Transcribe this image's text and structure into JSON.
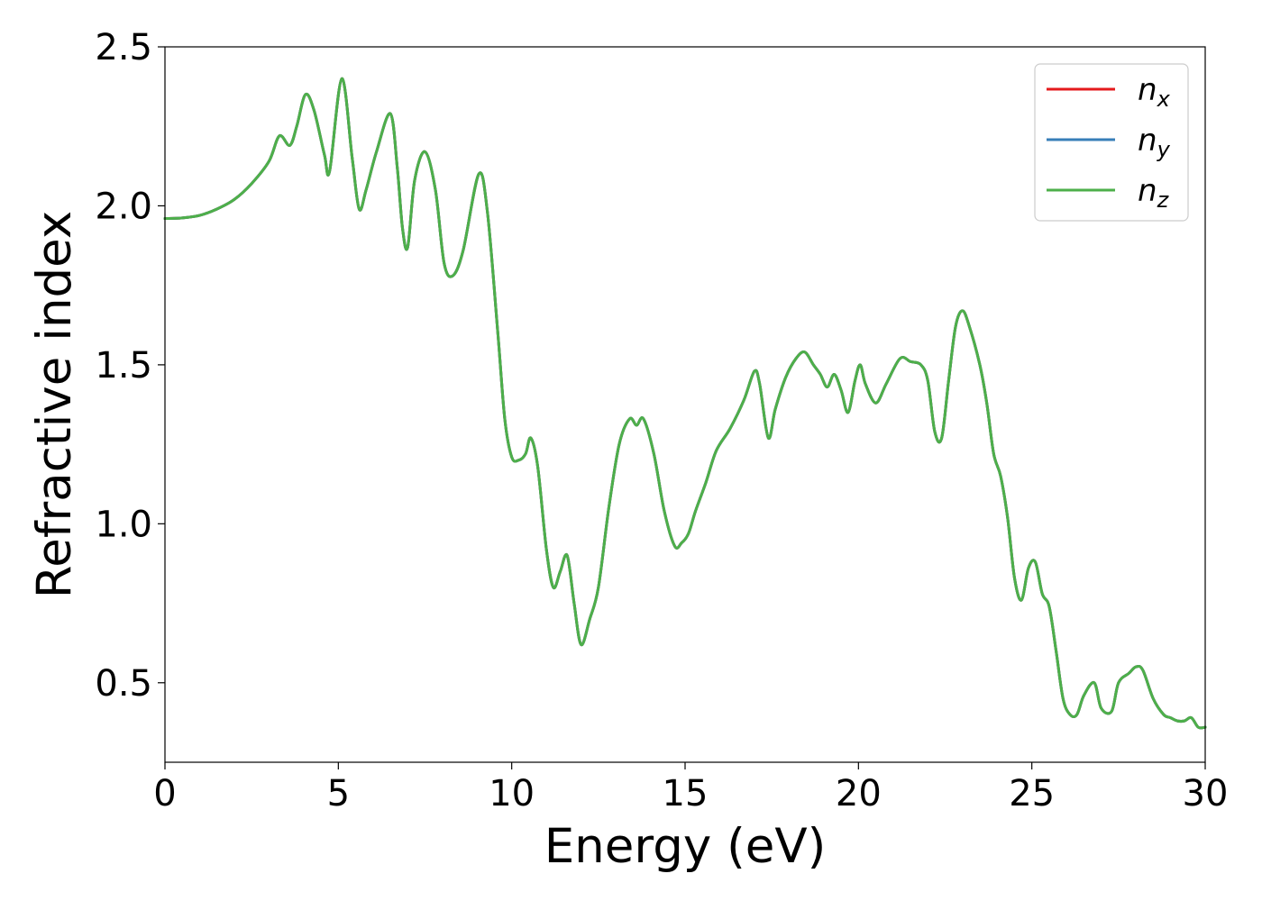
{
  "chart_data": {
    "type": "line",
    "title": "",
    "xlabel": "Energy (eV)",
    "ylabel": "Refractive index",
    "xlim": [
      0,
      30
    ],
    "ylim": [
      0.25,
      2.5
    ],
    "xticks": [
      0,
      5,
      10,
      15,
      20,
      25,
      30
    ],
    "xtick_labels": [
      "0",
      "5",
      "10",
      "15",
      "20",
      "25",
      "30"
    ],
    "yticks": [
      0.5,
      1.0,
      1.5,
      2.0,
      2.5
    ],
    "ytick_labels": [
      "0.5",
      "1.0",
      "1.5",
      "2.0",
      "2.5"
    ],
    "grid": false,
    "legend_position": "top-right",
    "legend": [
      {
        "base": "n",
        "sub": "x",
        "color": "#e41a1c"
      },
      {
        "base": "n",
        "sub": "y",
        "color": "#377eb8"
      },
      {
        "base": "n",
        "sub": "z",
        "color": "#4daf4a"
      }
    ],
    "x": [
      0,
      0.5,
      1,
      1.5,
      2,
      2.5,
      3,
      3.3,
      3.6,
      3.8,
      4.05,
      4.3,
      4.6,
      4.75,
      5.1,
      5.4,
      5.6,
      5.8,
      6.1,
      6.5,
      6.7,
      6.85,
      7,
      7.2,
      7.5,
      7.8,
      8.05,
      8.3,
      8.6,
      9.05,
      9.3,
      9.6,
      9.8,
      10,
      10.2,
      10.4,
      10.55,
      10.75,
      11,
      11.2,
      11.4,
      11.6,
      11.8,
      12,
      12.25,
      12.5,
      12.8,
      13.1,
      13.4,
      13.6,
      13.8,
      14.1,
      14.4,
      14.7,
      14.9,
      15.1,
      15.3,
      15.6,
      15.9,
      16.3,
      16.7,
      17,
      17.15,
      17.4,
      17.6,
      17.9,
      18.2,
      18.45,
      18.7,
      18.9,
      19.1,
      19.3,
      19.5,
      19.7,
      19.9,
      20.05,
      20.2,
      20.5,
      20.8,
      21.2,
      21.5,
      21.8,
      22,
      22.2,
      22.4,
      22.6,
      22.8,
      23,
      23.2,
      23.5,
      23.7,
      23.9,
      24.1,
      24.3,
      24.5,
      24.7,
      24.9,
      25.1,
      25.3,
      25.5,
      25.7,
      25.9,
      26.1,
      26.3,
      26.5,
      26.8,
      27,
      27.3,
      27.5,
      27.8,
      28,
      28.2,
      28.5,
      28.8,
      29,
      29.2,
      29.4,
      29.6,
      29.8,
      30
    ],
    "series": [
      {
        "name": "n_x",
        "color": "#e41a1c",
        "values": [
          1.96,
          1.962,
          1.97,
          1.99,
          2.02,
          2.07,
          2.14,
          2.22,
          2.19,
          2.25,
          2.35,
          2.3,
          2.16,
          2.11,
          2.4,
          2.15,
          1.99,
          2.05,
          2.17,
          2.29,
          2.12,
          1.93,
          1.87,
          2.08,
          2.17,
          2.05,
          1.82,
          1.78,
          1.86,
          2.1,
          1.98,
          1.6,
          1.33,
          1.21,
          1.2,
          1.22,
          1.27,
          1.18,
          0.92,
          0.8,
          0.85,
          0.9,
          0.75,
          0.62,
          0.7,
          0.8,
          1.05,
          1.25,
          1.33,
          1.31,
          1.33,
          1.22,
          1.04,
          0.93,
          0.94,
          0.97,
          1.04,
          1.13,
          1.23,
          1.3,
          1.39,
          1.48,
          1.44,
          1.27,
          1.36,
          1.46,
          1.52,
          1.54,
          1.5,
          1.47,
          1.43,
          1.47,
          1.42,
          1.35,
          1.45,
          1.5,
          1.44,
          1.38,
          1.44,
          1.52,
          1.51,
          1.5,
          1.45,
          1.29,
          1.27,
          1.45,
          1.62,
          1.67,
          1.62,
          1.5,
          1.38,
          1.22,
          1.15,
          1.02,
          0.83,
          0.76,
          0.86,
          0.88,
          0.78,
          0.74,
          0.6,
          0.45,
          0.4,
          0.4,
          0.46,
          0.5,
          0.42,
          0.41,
          0.5,
          0.53,
          0.55,
          0.54,
          0.45,
          0.4,
          0.39,
          0.38,
          0.38,
          0.39,
          0.36,
          0.36
        ]
      },
      {
        "name": "n_y",
        "color": "#377eb8",
        "values": [
          1.96,
          1.962,
          1.97,
          1.99,
          2.02,
          2.07,
          2.14,
          2.22,
          2.19,
          2.25,
          2.35,
          2.3,
          2.16,
          2.11,
          2.4,
          2.15,
          1.99,
          2.05,
          2.17,
          2.29,
          2.12,
          1.93,
          1.87,
          2.08,
          2.17,
          2.05,
          1.82,
          1.78,
          1.86,
          2.1,
          1.98,
          1.6,
          1.33,
          1.21,
          1.2,
          1.22,
          1.27,
          1.18,
          0.92,
          0.8,
          0.85,
          0.9,
          0.75,
          0.62,
          0.7,
          0.8,
          1.05,
          1.25,
          1.33,
          1.31,
          1.33,
          1.22,
          1.04,
          0.93,
          0.94,
          0.97,
          1.04,
          1.13,
          1.23,
          1.3,
          1.39,
          1.48,
          1.44,
          1.27,
          1.36,
          1.46,
          1.52,
          1.54,
          1.5,
          1.47,
          1.43,
          1.47,
          1.42,
          1.35,
          1.45,
          1.5,
          1.44,
          1.38,
          1.44,
          1.52,
          1.51,
          1.5,
          1.45,
          1.29,
          1.27,
          1.45,
          1.62,
          1.67,
          1.62,
          1.5,
          1.38,
          1.22,
          1.15,
          1.02,
          0.83,
          0.76,
          0.86,
          0.88,
          0.78,
          0.74,
          0.6,
          0.45,
          0.4,
          0.4,
          0.46,
          0.5,
          0.42,
          0.41,
          0.5,
          0.53,
          0.55,
          0.54,
          0.45,
          0.4,
          0.39,
          0.38,
          0.38,
          0.39,
          0.36,
          0.36
        ]
      },
      {
        "name": "n_z",
        "color": "#4daf4a",
        "values": [
          1.96,
          1.962,
          1.97,
          1.99,
          2.02,
          2.07,
          2.14,
          2.22,
          2.19,
          2.25,
          2.35,
          2.3,
          2.16,
          2.11,
          2.4,
          2.15,
          1.99,
          2.05,
          2.17,
          2.29,
          2.12,
          1.93,
          1.87,
          2.08,
          2.17,
          2.05,
          1.82,
          1.78,
          1.86,
          2.1,
          1.98,
          1.6,
          1.33,
          1.21,
          1.2,
          1.22,
          1.27,
          1.18,
          0.92,
          0.8,
          0.85,
          0.9,
          0.75,
          0.62,
          0.7,
          0.8,
          1.05,
          1.25,
          1.33,
          1.31,
          1.33,
          1.22,
          1.04,
          0.93,
          0.94,
          0.97,
          1.04,
          1.13,
          1.23,
          1.3,
          1.39,
          1.48,
          1.44,
          1.27,
          1.36,
          1.46,
          1.52,
          1.54,
          1.5,
          1.47,
          1.43,
          1.47,
          1.42,
          1.35,
          1.45,
          1.5,
          1.44,
          1.38,
          1.44,
          1.52,
          1.51,
          1.5,
          1.45,
          1.29,
          1.27,
          1.45,
          1.62,
          1.67,
          1.62,
          1.5,
          1.38,
          1.22,
          1.15,
          1.02,
          0.83,
          0.76,
          0.86,
          0.88,
          0.78,
          0.74,
          0.6,
          0.45,
          0.4,
          0.4,
          0.46,
          0.5,
          0.42,
          0.41,
          0.5,
          0.53,
          0.55,
          0.54,
          0.45,
          0.4,
          0.39,
          0.38,
          0.38,
          0.39,
          0.36,
          0.36
        ]
      }
    ]
  }
}
